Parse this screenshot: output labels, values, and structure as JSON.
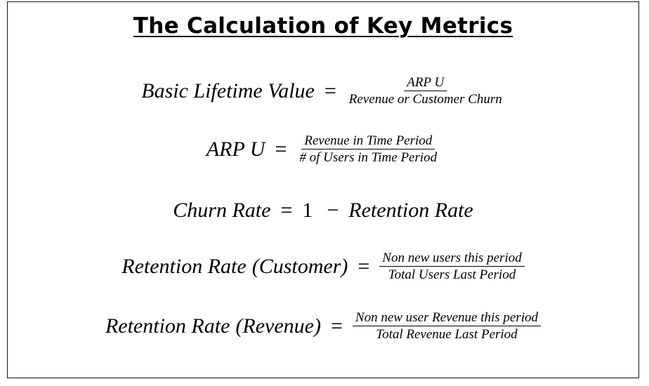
{
  "title": "The Calculation of Key Metrics",
  "formulas": [
    {
      "lhs": "Basic Lifetime Value",
      "operator": "=",
      "numerator": "ARP U",
      "denominator": "Revenue or Customer Churn"
    },
    {
      "lhs": "ARP U",
      "operator": "=",
      "numerator": "Revenue in Time Period",
      "denominator": "# of Users in Time Period"
    },
    {
      "lhs": "Churn Rate",
      "operator": "=",
      "term1": "1",
      "minus": "−",
      "term2": "Retention Rate"
    },
    {
      "lhs": "Retention Rate",
      "qualifier": "(Customer)",
      "operator": "=",
      "numerator": "Non new users this period",
      "denominator": "Total Users Last Period"
    },
    {
      "lhs": "Retention Rate",
      "qualifier": "(Revenue)",
      "operator": "=",
      "numerator": "Non new user Revenue this period",
      "denominator": "Total Revenue Last Period"
    }
  ]
}
